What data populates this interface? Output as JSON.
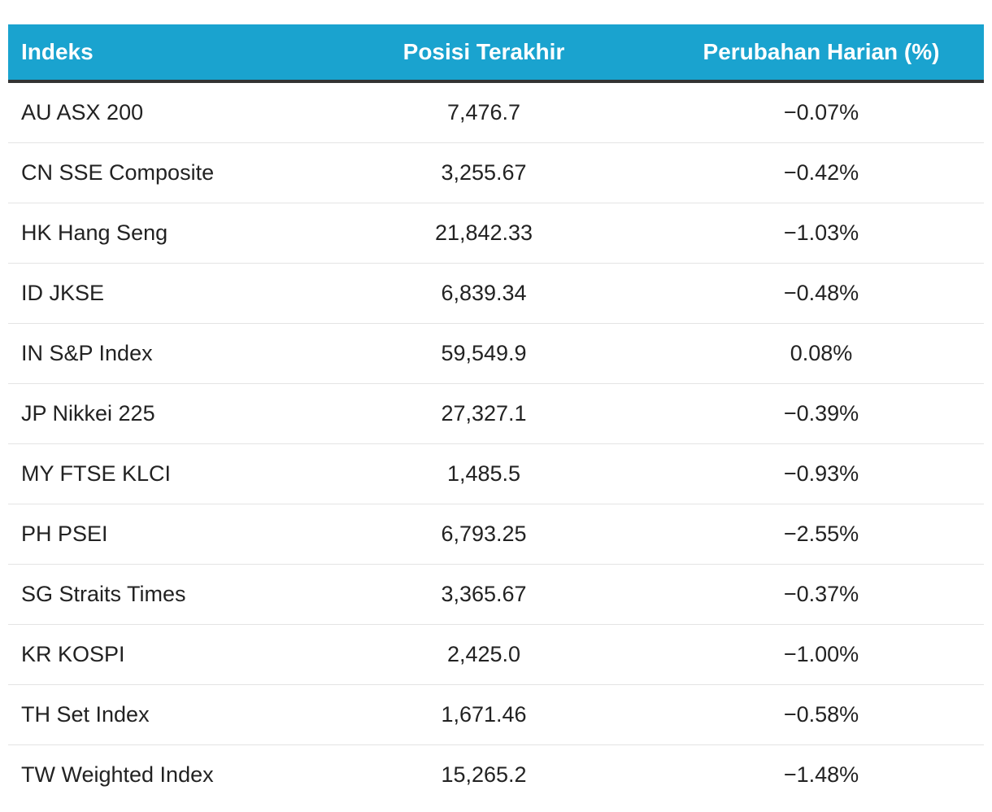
{
  "table": {
    "headers": {
      "index": "Indeks",
      "last_position": "Posisi Terakhir",
      "daily_change": "Perubahan Harian (%)"
    },
    "rows": [
      {
        "index": "AU ASX 200",
        "last_position": "7,476.7",
        "daily_change": "−0.07%"
      },
      {
        "index": "CN SSE Composite",
        "last_position": "3,255.67",
        "daily_change": "−0.42%"
      },
      {
        "index": "HK Hang Seng",
        "last_position": "21,842.33",
        "daily_change": "−1.03%"
      },
      {
        "index": "ID JKSE",
        "last_position": "6,839.34",
        "daily_change": "−0.48%"
      },
      {
        "index": "IN S&P Index",
        "last_position": "59,549.9",
        "daily_change": "0.08%"
      },
      {
        "index": "JP Nikkei 225",
        "last_position": "27,327.1",
        "daily_change": "−0.39%"
      },
      {
        "index": "MY FTSE KLCI",
        "last_position": "1,485.5",
        "daily_change": "−0.93%"
      },
      {
        "index": "PH PSEI",
        "last_position": "6,793.25",
        "daily_change": "−2.55%"
      },
      {
        "index": "SG Straits Times",
        "last_position": "3,365.67",
        "daily_change": "−0.37%"
      },
      {
        "index": "KR KOSPI",
        "last_position": "2,425.0",
        "daily_change": "−1.00%"
      },
      {
        "index": "TH Set Index",
        "last_position": "1,671.46",
        "daily_change": "−0.58%"
      },
      {
        "index": "TW Weighted Index",
        "last_position": "15,265.2",
        "daily_change": "−1.48%"
      }
    ]
  },
  "colors": {
    "header_background": "#1aa3cf",
    "header_text": "#ffffff",
    "header_rule": "#333333",
    "row_divider": "#e4e4e4",
    "body_text": "#222222"
  }
}
